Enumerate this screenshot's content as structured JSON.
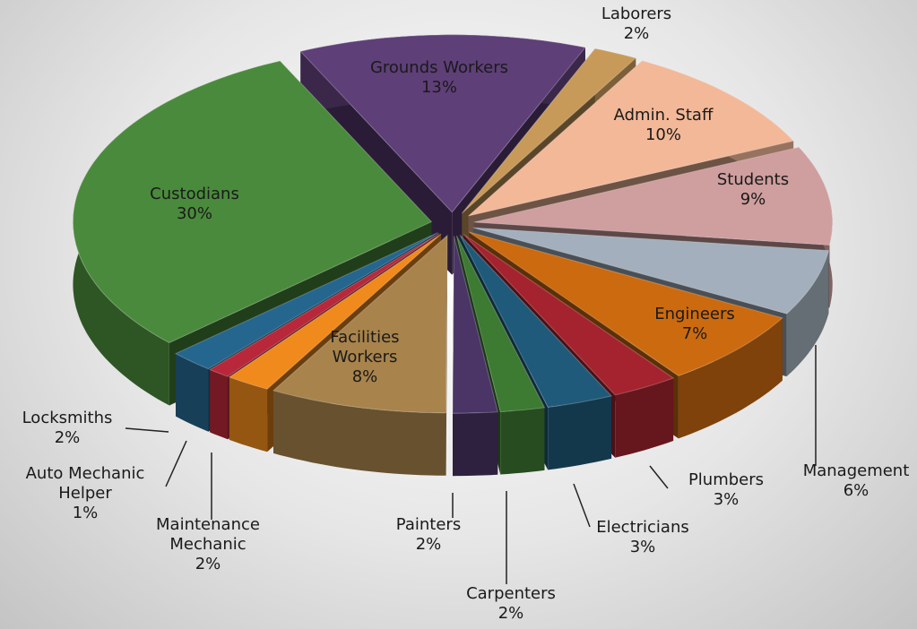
{
  "chart_data": {
    "type": "pie",
    "categories": [
      "Grounds Workers",
      "Laborers",
      "Admin. Staff",
      "Students",
      "Management",
      "Engineers",
      "Plumbers",
      "Electricians",
      "Carpenters",
      "Painters",
      "Facilities Workers",
      "Maintenance Mechanic",
      "Auto Mechanic Helper",
      "Locksmiths",
      "Custodians"
    ],
    "values": [
      13,
      2,
      10,
      9,
      6,
      7,
      3,
      3,
      2,
      2,
      8,
      2,
      1,
      2,
      30
    ],
    "value_labels": [
      "13%",
      "2%",
      "10%",
      "9%",
      "6%",
      "7%",
      "3%",
      "3%",
      "2%",
      "2%",
      "8%",
      "2%",
      "1%",
      "2%",
      "30%"
    ],
    "colors": [
      "#5e3f78",
      "#c89a5a",
      "#f3b898",
      "#cf9e9e",
      "#a3afbd",
      "#cc6a10",
      "#a5232e",
      "#1f5a7a",
      "#3d7a32",
      "#4a3566",
      "#a8834c",
      "#f08a1c",
      "#b8283a",
      "#25668e",
      "#4a8a3c"
    ]
  }
}
